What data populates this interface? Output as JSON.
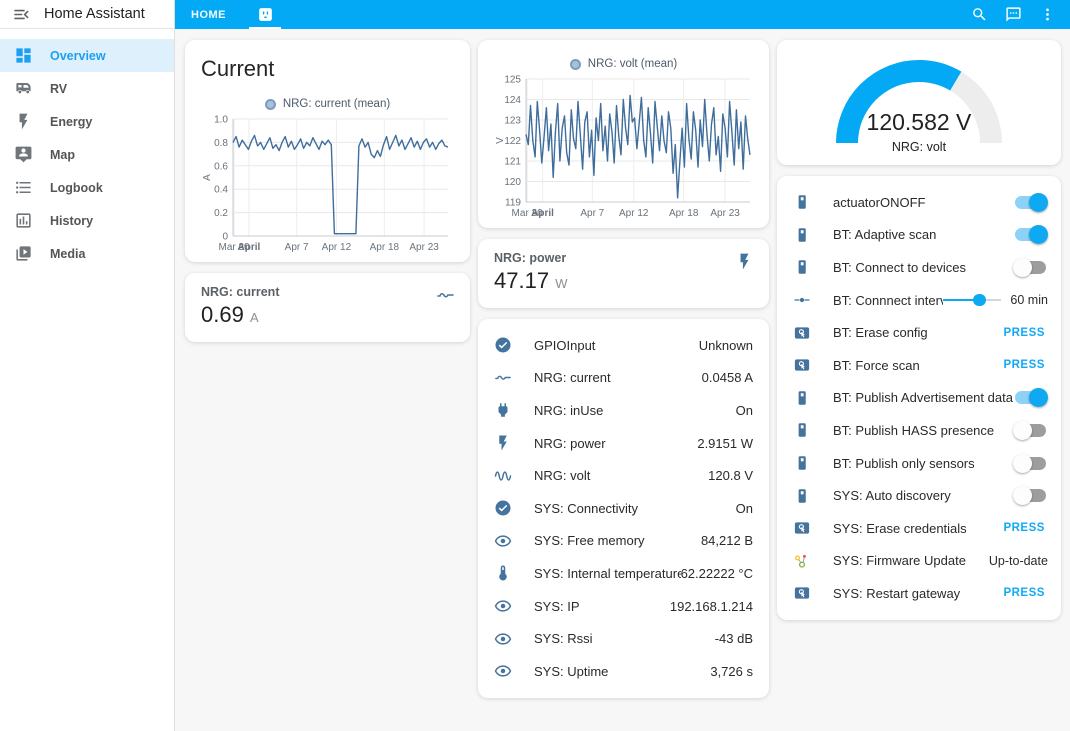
{
  "app": {
    "title": "Home Assistant",
    "menu_icon": "menu-open"
  },
  "header": {
    "location": "HOME",
    "active_tab_icon": "power-socket",
    "icons": [
      {
        "name": "magnify"
      },
      {
        "name": "message"
      },
      {
        "name": "dots-vertical"
      }
    ]
  },
  "sidebar": {
    "items": [
      {
        "icon": "view-dashboard",
        "label": "Overview",
        "active": true
      },
      {
        "icon": "rv-truck",
        "label": "RV",
        "active": false
      },
      {
        "icon": "flash",
        "label": "Energy",
        "active": false
      },
      {
        "icon": "tooltip-account",
        "label": "Map",
        "active": false
      },
      {
        "icon": "format-list-bulleted",
        "label": "Logbook",
        "active": false
      },
      {
        "icon": "chart-box",
        "label": "History",
        "active": false
      },
      {
        "icon": "play-box-multiple",
        "label": "Media",
        "active": false
      }
    ]
  },
  "cards": {
    "current_sensor": {
      "name": "NRG: current",
      "value": "0.69",
      "unit": "A",
      "icon": "current-ac"
    },
    "power_sensor": {
      "name": "NRG: power",
      "value": "47.17",
      "unit": "W",
      "icon": "flash"
    },
    "gauge": {
      "value": "120.582 V",
      "label": "NRG: volt",
      "percent": 67,
      "color": "#03a9f4",
      "track_color": "#ededed"
    },
    "sensor_list": {
      "rows": [
        {
          "icon": "check-circle",
          "name": "GPIOInput",
          "value": "Unknown"
        },
        {
          "icon": "current-ac",
          "name": "NRG: current",
          "value": "0.0458 A"
        },
        {
          "icon": "power-plug",
          "name": "NRG: inUse",
          "value": "On"
        },
        {
          "icon": "flash",
          "name": "NRG: power",
          "value": "2.9151 W"
        },
        {
          "icon": "sine-wave",
          "name": "NRG: volt",
          "value": "120.8 V"
        },
        {
          "icon": "check-circle",
          "name": "SYS: Connectivity",
          "value": "On"
        },
        {
          "icon": "eye",
          "name": "SYS: Free memory",
          "value": "84,212 B"
        },
        {
          "icon": "thermometer",
          "name": "SYS: Internal temperature",
          "value": "62.22222 °C"
        },
        {
          "icon": "eye",
          "name": "SYS: IP",
          "value": "192.168.1.214"
        },
        {
          "icon": "eye",
          "name": "SYS: Rssi",
          "value": "-43 dB"
        },
        {
          "icon": "eye",
          "name": "SYS: Uptime",
          "value": "3,726 s"
        }
      ]
    },
    "control_list": {
      "rows": [
        {
          "icon": "light-switch",
          "name": "actuatorONOFF",
          "control": "toggle",
          "state": "on"
        },
        {
          "icon": "light-switch",
          "name": "BT: Adaptive scan",
          "control": "toggle",
          "state": "on"
        },
        {
          "icon": "light-switch",
          "name": "BT: Connect to devices",
          "control": "toggle",
          "state": "off"
        },
        {
          "icon": "ray-vertex",
          "name": "BT: Connnect interval",
          "control": "slider",
          "value": "60 min",
          "percent": 62
        },
        {
          "icon": "gesture-tap-button",
          "name": "BT: Erase config",
          "control": "press",
          "label": "PRESS"
        },
        {
          "icon": "gesture-tap-button",
          "name": "BT: Force scan",
          "control": "press",
          "label": "PRESS"
        },
        {
          "icon": "light-switch",
          "name": "BT: Publish Advertisement data",
          "control": "toggle",
          "state": "on"
        },
        {
          "icon": "light-switch",
          "name": "BT: Publish HASS presence",
          "control": "toggle",
          "state": "off"
        },
        {
          "icon": "light-switch",
          "name": "BT: Publish only sensors",
          "control": "toggle",
          "state": "off"
        },
        {
          "icon": "light-switch",
          "name": "SYS: Auto discovery",
          "control": "toggle",
          "state": "off"
        },
        {
          "icon": "gesture-tap-button",
          "name": "SYS: Erase credentials",
          "control": "press",
          "label": "PRESS"
        },
        {
          "icon": "update-graph",
          "name": "SYS: Firmware Update",
          "control": "text",
          "value": "Up-to-date"
        },
        {
          "icon": "gesture-tap-button",
          "name": "SYS: Restart gateway",
          "control": "press",
          "label": "PRESS"
        }
      ]
    }
  },
  "chart_data": [
    {
      "type": "line",
      "title": "Current",
      "series_name": "NRG: current (mean)",
      "ylabel": "A",
      "ylim": [
        0,
        1.0
      ],
      "yticks": [
        "0",
        "0.2",
        "0.4",
        "0.6",
        "0.8",
        "1.0"
      ],
      "xticks": [
        {
          "pos": 0.005,
          "label": "Mar 30"
        },
        {
          "pos": 0.074,
          "label": "April",
          "bold": true
        },
        {
          "pos": 0.296,
          "label": "Apr 7"
        },
        {
          "pos": 0.481,
          "label": "Apr 12"
        },
        {
          "pos": 0.704,
          "label": "Apr 18"
        },
        {
          "pos": 0.889,
          "label": "Apr 23"
        }
      ],
      "color": "#3f6d9c",
      "grid": true,
      "legend_position": "top",
      "values": [
        0.8,
        0.85,
        0.76,
        0.82,
        0.78,
        0.74,
        0.81,
        0.86,
        0.77,
        0.8,
        0.74,
        0.79,
        0.84,
        0.75,
        0.78,
        0.73,
        0.8,
        0.85,
        0.76,
        0.81,
        0.74,
        0.78,
        0.83,
        0.75,
        0.8,
        0.77,
        0.84,
        0.79,
        0.74,
        0.81,
        0.78,
        0.82,
        0.78,
        0.02,
        0.02,
        0.02,
        0.02,
        0.02,
        0.02,
        0.02,
        0.02,
        0.77,
        0.83,
        0.76,
        0.8,
        0.7,
        0.67,
        0.73,
        0.68,
        0.78,
        0.85,
        0.74,
        0.8,
        0.86,
        0.77,
        0.82,
        0.74,
        0.79,
        0.84,
        0.76,
        0.81,
        0.74,
        0.8,
        0.83,
        0.76,
        0.8,
        0.74,
        0.79,
        0.82,
        0.77,
        0.76
      ]
    },
    {
      "type": "line",
      "title": "",
      "series_name": "NRG: volt (mean)",
      "ylabel": "V",
      "ylim": [
        119,
        125
      ],
      "yticks": [
        "119",
        "120",
        "121",
        "122",
        "123",
        "124",
        "125"
      ],
      "xticks": [
        {
          "pos": 0.005,
          "label": "Mar 30"
        },
        {
          "pos": 0.074,
          "label": "April",
          "bold": true
        },
        {
          "pos": 0.296,
          "label": "Apr 7"
        },
        {
          "pos": 0.481,
          "label": "Apr 12"
        },
        {
          "pos": 0.704,
          "label": "Apr 18"
        },
        {
          "pos": 0.889,
          "label": "Apr 23"
        }
      ],
      "color": "#3f6d9c",
      "grid": true,
      "legend_position": "top",
      "values": [
        122.3,
        121.8,
        123.7,
        122.0,
        121.2,
        123.9,
        122.5,
        120.9,
        122.2,
        123.6,
        121.5,
        122.8,
        120.2,
        122.4,
        123.8,
        121.0,
        122.6,
        123.2,
        121.4,
        120.8,
        123.5,
        122.1,
        121.6,
        123.9,
        122.3,
        120.6,
        122.9,
        123.4,
        121.2,
        122.5,
        120.3,
        123.1,
        122.0,
        123.8,
        121.5,
        122.7,
        121.0,
        123.3,
        122.4,
        120.9,
        123.7,
        122.2,
        121.3,
        124.0,
        122.6,
        121.8,
        124.2,
        122.9,
        123.1,
        121.6,
        122.8,
        124.1,
        122.0,
        121.2,
        123.6,
        122.4,
        120.9,
        123.9,
        122.7,
        121.5,
        123.2,
        122.0,
        121.4,
        123.4,
        122.6,
        120.4,
        121.8,
        119.2,
        121.0,
        122.6,
        120.7,
        123.8,
        122.1,
        121.1,
        123.4,
        122.5,
        120.7,
        123.0,
        121.7,
        124.0,
        122.3,
        121.0,
        122.8,
        123.6,
        121.3,
        122.2,
        120.5,
        123.3,
        122.6,
        121.2,
        123.9,
        122.4,
        120.8,
        123.5,
        121.6,
        122.9,
        120.6,
        123.2,
        122.1,
        121.3
      ]
    }
  ],
  "colors": {
    "primary": "#03a9f4",
    "state_icon": "#44739e",
    "chart_line": "#3f6d9c"
  }
}
